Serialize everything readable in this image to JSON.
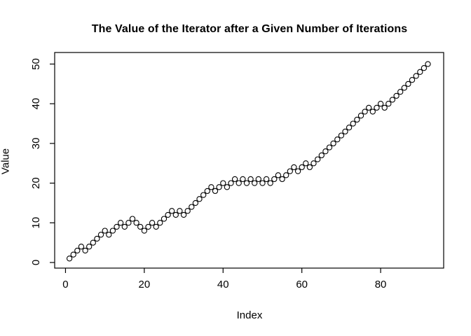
{
  "title": "The Value of the Iterator after a Given Number of Iterations",
  "axes": {
    "xlabel": "Index",
    "ylabel": "Value"
  },
  "colors": {
    "foreground": "#000000",
    "background": "#ffffff"
  },
  "chart_data": {
    "type": "scatter",
    "title": "The Value of the Iterator after a Given Number of Iterations",
    "xlabel": "Index",
    "ylabel": "Value",
    "marker": "open-circle",
    "marker_color": "#000000",
    "grid": false,
    "legend": "none",
    "xlim": [
      -2.75,
      96.0
    ],
    "ylim": [
      -1.41,
      52.91
    ],
    "xticks": [
      0,
      20,
      40,
      60,
      80
    ],
    "yticks": [
      0,
      10,
      20,
      30,
      40,
      50
    ],
    "x": [
      1,
      2,
      3,
      4,
      5,
      6,
      7,
      8,
      9,
      10,
      11,
      12,
      13,
      14,
      15,
      16,
      17,
      18,
      19,
      20,
      21,
      22,
      23,
      24,
      25,
      26,
      27,
      28,
      29,
      30,
      31,
      32,
      33,
      34,
      35,
      36,
      37,
      38,
      39,
      40,
      41,
      42,
      43,
      44,
      45,
      46,
      47,
      48,
      49,
      50,
      51,
      52,
      53,
      54,
      55,
      56,
      57,
      58,
      59,
      60,
      61,
      62,
      63,
      64,
      65,
      66,
      67,
      68,
      69,
      70,
      71,
      72,
      73,
      74,
      75,
      76,
      77,
      78,
      79,
      80,
      81,
      82,
      83,
      84,
      85,
      86,
      87,
      88,
      89,
      90,
      91,
      92
    ],
    "values": [
      1,
      2,
      3,
      4,
      3,
      4,
      5,
      6,
      7,
      8,
      7,
      8,
      9,
      10,
      9,
      10,
      11,
      10,
      9,
      8,
      9,
      10,
      9,
      10,
      11,
      12,
      13,
      12,
      13,
      12,
      13,
      14,
      15,
      16,
      17,
      18,
      19,
      18,
      19,
      20,
      19,
      20,
      21,
      20,
      21,
      20,
      21,
      20,
      21,
      20,
      21,
      20,
      21,
      22,
      21,
      22,
      23,
      24,
      23,
      24,
      25,
      24,
      25,
      26,
      27,
      28,
      29,
      30,
      31,
      32,
      33,
      34,
      35,
      36,
      37,
      38,
      39,
      38,
      39,
      40,
      39,
      40,
      41,
      42,
      43,
      44,
      45,
      46,
      47,
      48,
      49,
      50
    ]
  }
}
